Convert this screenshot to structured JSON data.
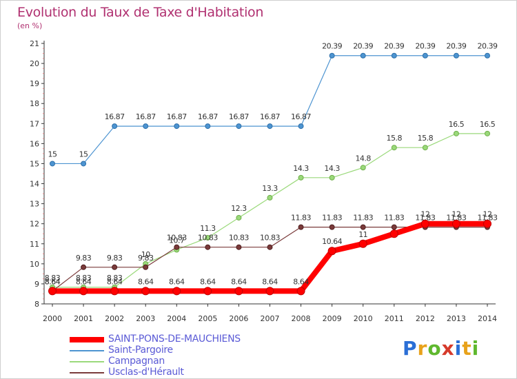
{
  "header": {
    "title": "Evolution du Taux de Taxe d'Habitation",
    "subtitle": "(en %)"
  },
  "logo": {
    "text": "Proxiti",
    "colors": [
      "#2b6fd6",
      "#e8a21b",
      "#5fb82e",
      "#d63a2b",
      "#2b6fd6",
      "#e8a21b",
      "#5fb82e"
    ]
  },
  "chart_data": {
    "type": "line",
    "title": "Evolution du Taux de Taxe d'Habitation",
    "ylabel": "(en %)",
    "xlabel": "",
    "x": [
      "2000",
      "2001",
      "2002",
      "2003",
      "2004",
      "2005",
      "2006",
      "2007",
      "2008",
      "2009",
      "2010",
      "2011",
      "2012",
      "2013",
      "2014"
    ],
    "yticks": [
      "8",
      "9",
      "10",
      "11",
      "12",
      "13",
      "14",
      "15",
      "16",
      "17",
      "18",
      "19",
      "20",
      "21"
    ],
    "ylim": [
      8,
      21
    ],
    "grid": false,
    "legend_position": "bottom-left",
    "series": [
      {
        "name": "SAINT-PONS-DE-MAUCHIENS",
        "color": "#ff0000",
        "width": 8,
        "values": [
          8.64,
          8.64,
          8.64,
          8.64,
          8.64,
          8.64,
          8.64,
          8.64,
          8.64,
          10.64,
          11,
          11.5,
          12,
          12,
          12
        ],
        "labels": [
          "8.64",
          "8.64",
          "8.64",
          "8.64",
          "8.64",
          "8.64",
          "8.64",
          "8.64",
          "8.64",
          "10.64",
          "11",
          "",
          "12",
          "12",
          "12"
        ]
      },
      {
        "name": "Saint-Pargoire",
        "color": "#4d94d1",
        "width": 1.2,
        "values": [
          15,
          15,
          16.87,
          16.87,
          16.87,
          16.87,
          16.87,
          16.87,
          16.87,
          20.39,
          20.39,
          20.39,
          20.39,
          20.39,
          20.39
        ],
        "labels": [
          "15",
          "15",
          "16.87",
          "16.87",
          "16.87",
          "16.87",
          "16.87",
          "16.87",
          "16.87",
          "20.39",
          "20.39",
          "20.39",
          "20.39",
          "20.39",
          "20.39"
        ]
      },
      {
        "name": "Campagnan",
        "color": "#9ad97a",
        "width": 1.2,
        "values": [
          8.83,
          8.83,
          8.83,
          10,
          10.7,
          11.3,
          12.3,
          13.3,
          14.3,
          14.3,
          14.8,
          15.8,
          15.8,
          16.5,
          16.5
        ],
        "labels": [
          "8.83",
          "8.83",
          "8.83",
          "10",
          "10.7",
          "11.3",
          "12.3",
          "13.3",
          "14.3",
          "14.3",
          "14.8",
          "15.8",
          "15.8",
          "16.5",
          "16.5"
        ]
      },
      {
        "name": "Usclas-d'Hérault",
        "color": "#7a3a3a",
        "width": 1.2,
        "values": [
          8.64,
          9.83,
          9.83,
          9.83,
          10.83,
          10.83,
          10.83,
          10.83,
          11.83,
          11.83,
          11.83,
          11.83,
          11.83,
          11.83,
          11.83
        ],
        "labels": [
          "8.64",
          "9.83",
          "9.83",
          "9.83",
          "10.83",
          "10.83",
          "10.83",
          "10.83",
          "11.83",
          "11.83",
          "11.83",
          "11.83",
          "11.83",
          "11.83",
          "11.83"
        ]
      }
    ]
  }
}
